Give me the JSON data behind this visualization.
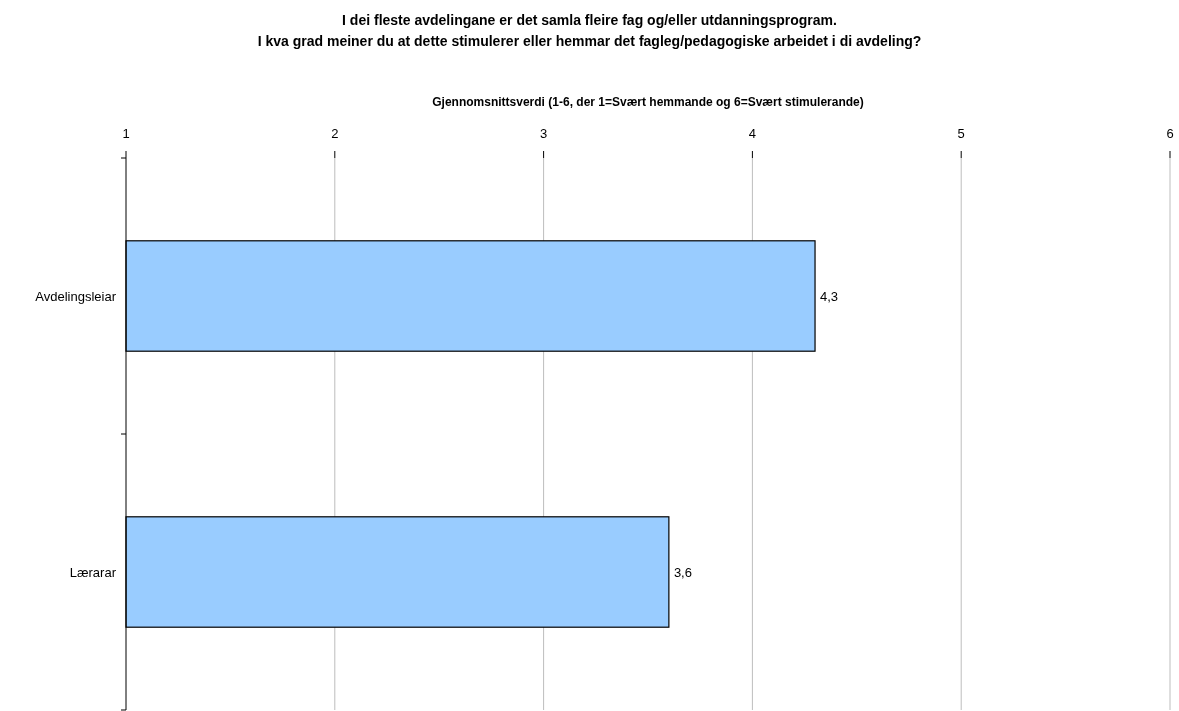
{
  "chart_data": {
    "type": "bar",
    "orientation": "horizontal",
    "title": "I dei fleste avdelingane er det samla fleire fag og/eller utdanningsprogram.\nI kva grad meiner du at dette stimulerer eller hemmar det fagleg/pedagogiske arbeidet i di avdeling?",
    "xlabel": "Gjennomsnittsverdi (1-6, der 1=Svært hemmande og 6=Svært stimulerande)",
    "categories": [
      "Avdelingsleiar",
      "Lærarar"
    ],
    "values": [
      4.3,
      3.6
    ],
    "value_labels": [
      "4,3",
      "3,6"
    ],
    "color": "#99ccff",
    "xlim": [
      1,
      6
    ],
    "xticks": [
      1,
      2,
      3,
      4,
      5,
      6
    ],
    "grid": "x"
  }
}
